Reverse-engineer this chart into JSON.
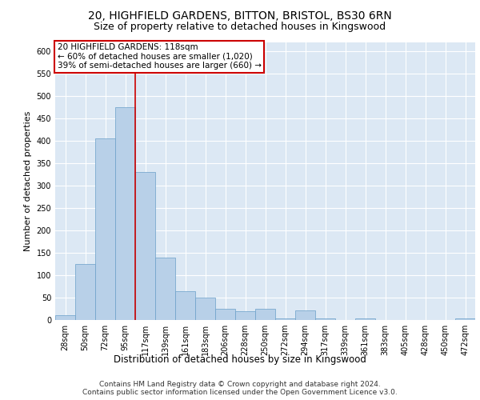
{
  "title1": "20, HIGHFIELD GARDENS, BITTON, BRISTOL, BS30 6RN",
  "title2": "Size of property relative to detached houses in Kingswood",
  "xlabel": "Distribution of detached houses by size in Kingswood",
  "ylabel": "Number of detached properties",
  "footer1": "Contains HM Land Registry data © Crown copyright and database right 2024.",
  "footer2": "Contains public sector information licensed under the Open Government Licence v3.0.",
  "categories": [
    "28sqm",
    "50sqm",
    "72sqm",
    "95sqm",
    "117sqm",
    "139sqm",
    "161sqm",
    "183sqm",
    "206sqm",
    "228sqm",
    "250sqm",
    "272sqm",
    "294sqm",
    "317sqm",
    "339sqm",
    "361sqm",
    "383sqm",
    "405sqm",
    "428sqm",
    "450sqm",
    "472sqm"
  ],
  "values": [
    10,
    125,
    405,
    475,
    330,
    140,
    65,
    50,
    25,
    20,
    25,
    3,
    22,
    3,
    0,
    3,
    0,
    0,
    0,
    0,
    3
  ],
  "bar_color": "#b8d0e8",
  "bar_edge_color": "#6a9fc8",
  "vline_color": "#cc0000",
  "vline_index": 3.5,
  "annotation_box_text": "20 HIGHFIELD GARDENS: 118sqm\n← 60% of detached houses are smaller (1,020)\n39% of semi-detached houses are larger (660) →",
  "annotation_box_color": "#cc0000",
  "ylim": [
    0,
    620
  ],
  "yticks": [
    0,
    50,
    100,
    150,
    200,
    250,
    300,
    350,
    400,
    450,
    500,
    550,
    600
  ],
  "bg_color": "#dce8f4",
  "grid_color": "#ffffff",
  "title1_fontsize": 10,
  "title2_fontsize": 9,
  "xlabel_fontsize": 8.5,
  "ylabel_fontsize": 8,
  "tick_fontsize": 7,
  "footer_fontsize": 6.5,
  "annot_fontsize": 7.5
}
